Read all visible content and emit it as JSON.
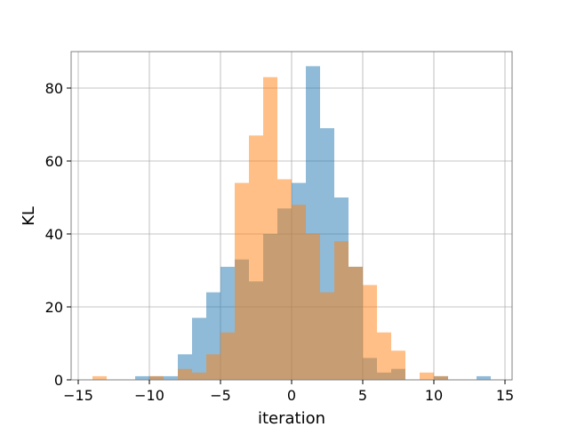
{
  "chart_data": {
    "type": "bar",
    "xlabel": "iteration",
    "ylabel": "KL",
    "xlim": [
      -15.5,
      15.5
    ],
    "ylim": [
      0,
      90
    ],
    "xticks": [
      -15,
      -10,
      -5,
      0,
      5,
      10,
      15
    ],
    "yticks": [
      0,
      20,
      40,
      60,
      80
    ],
    "xtick_labels": [
      "−15",
      "−10",
      "−5",
      "0",
      "5",
      "10",
      "15"
    ],
    "ytick_labels": [
      "0",
      "20",
      "40",
      "60",
      "80"
    ],
    "grid": true,
    "bin_width": 1,
    "series": [
      {
        "color": "#1f77b4",
        "opacity": 0.5,
        "bins": [
          {
            "x0": -11,
            "count": 1
          },
          {
            "x0": -10,
            "count": 1
          },
          {
            "x0": -9,
            "count": 1
          },
          {
            "x0": -8,
            "count": 7
          },
          {
            "x0": -7,
            "count": 17
          },
          {
            "x0": -6,
            "count": 24
          },
          {
            "x0": -5,
            "count": 31
          },
          {
            "x0": -4,
            "count": 33
          },
          {
            "x0": -3,
            "count": 27
          },
          {
            "x0": -2,
            "count": 40
          },
          {
            "x0": -1,
            "count": 47
          },
          {
            "x0": 0,
            "count": 54
          },
          {
            "x0": 1,
            "count": 86
          },
          {
            "x0": 2,
            "count": 69
          },
          {
            "x0": 3,
            "count": 50
          },
          {
            "x0": 4,
            "count": 31
          },
          {
            "x0": 5,
            "count": 6
          },
          {
            "x0": 6,
            "count": 2
          },
          {
            "x0": 7,
            "count": 3
          },
          {
            "x0": 10,
            "count": 1
          },
          {
            "x0": 13,
            "count": 1
          }
        ]
      },
      {
        "color": "#ff7f0e",
        "opacity": 0.5,
        "bins": [
          {
            "x0": -14,
            "count": 1
          },
          {
            "x0": -10,
            "count": 1
          },
          {
            "x0": -8,
            "count": 3
          },
          {
            "x0": -7,
            "count": 2
          },
          {
            "x0": -6,
            "count": 7
          },
          {
            "x0": -5,
            "count": 13
          },
          {
            "x0": -4,
            "count": 54
          },
          {
            "x0": -3,
            "count": 67
          },
          {
            "x0": -2,
            "count": 83
          },
          {
            "x0": -1,
            "count": 55
          },
          {
            "x0": 0,
            "count": 48
          },
          {
            "x0": 1,
            "count": 40
          },
          {
            "x0": 2,
            "count": 24
          },
          {
            "x0": 3,
            "count": 38
          },
          {
            "x0": 4,
            "count": 31
          },
          {
            "x0": 5,
            "count": 26
          },
          {
            "x0": 6,
            "count": 13
          },
          {
            "x0": 7,
            "count": 8
          },
          {
            "x0": 9,
            "count": 2
          },
          {
            "x0": 10,
            "count": 1
          }
        ]
      }
    ]
  }
}
